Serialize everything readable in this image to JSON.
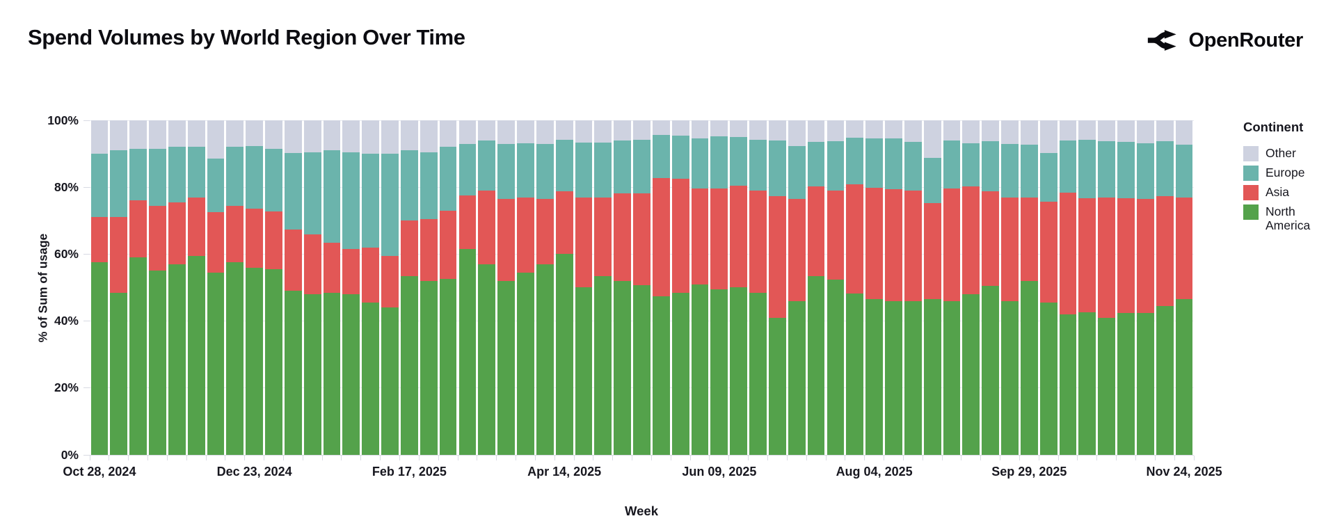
{
  "title": "Spend Volumes by World Region Over Time",
  "brand": {
    "name": "OpenRouter",
    "icon": "fork-arrows-icon",
    "color": "#0a0a0e"
  },
  "chart_data": {
    "type": "bar",
    "stacked": true,
    "unit": "percent",
    "title": "Spend Volumes by World Region Over Time",
    "xlabel": "Week",
    "ylabel": "% of Sum of usage",
    "ylim": [
      0,
      100
    ],
    "grid": true,
    "y_ticks": [
      "0%",
      "20%",
      "40%",
      "60%",
      "80%",
      "100%"
    ],
    "x_tick_labels": [
      {
        "index": 0,
        "label": "Oct 28, 2024"
      },
      {
        "index": 8,
        "label": "Dec 23, 2024"
      },
      {
        "index": 16,
        "label": "Feb 17, 2025"
      },
      {
        "index": 24,
        "label": "Apr 14, 2025"
      },
      {
        "index": 32,
        "label": "Jun 09, 2025"
      },
      {
        "index": 40,
        "label": "Aug 04, 2025"
      },
      {
        "index": 48,
        "label": "Sep 29, 2025"
      },
      {
        "index": 56,
        "label": "Nov 24, 2025"
      }
    ],
    "legend": {
      "title": "Continent",
      "position": "right",
      "entries": [
        {
          "key": "other",
          "label": "Other",
          "color": "#ced2e0"
        },
        {
          "key": "europe",
          "label": "Europe",
          "color": "#6bb4ac"
        },
        {
          "key": "asia",
          "label": "Asia",
          "color": "#e25756"
        },
        {
          "key": "north_america",
          "label": "North America",
          "color": "#54a24b"
        }
      ]
    },
    "series_order_bottom_to_top": [
      "north_america",
      "asia",
      "europe",
      "other"
    ],
    "weeks": [
      {
        "date": "Oct 28, 2024",
        "north_america": 57.5,
        "asia": 13.5,
        "europe": 19.0,
        "other": 10.0
      },
      {
        "date": "Nov 04, 2024",
        "north_america": 48.5,
        "asia": 22.5,
        "europe": 20.0,
        "other": 9.0
      },
      {
        "date": "Nov 11, 2024",
        "north_america": 59.0,
        "asia": 17.0,
        "europe": 15.5,
        "other": 8.5
      },
      {
        "date": "Nov 18, 2024",
        "north_america": 55.0,
        "asia": 19.5,
        "europe": 17.0,
        "other": 8.5
      },
      {
        "date": "Nov 25, 2024",
        "north_america": 57.0,
        "asia": 18.5,
        "europe": 16.5,
        "other": 8.0
      },
      {
        "date": "Dec 02, 2024",
        "north_america": 59.5,
        "asia": 17.5,
        "europe": 15.0,
        "other": 8.0
      },
      {
        "date": "Dec 09, 2024",
        "north_america": 54.5,
        "asia": 18.0,
        "europe": 16.0,
        "other": 11.5
      },
      {
        "date": "Dec 16, 2024",
        "north_america": 57.5,
        "asia": 17.0,
        "europe": 17.5,
        "other": 8.0
      },
      {
        "date": "Dec 23, 2024",
        "north_america": 56.0,
        "asia": 17.5,
        "europe": 18.8,
        "other": 7.7
      },
      {
        "date": "Dec 30, 2024",
        "north_america": 55.5,
        "asia": 17.3,
        "europe": 18.7,
        "other": 8.5
      },
      {
        "date": "Jan 06, 2025",
        "north_america": 49.0,
        "asia": 18.4,
        "europe": 22.9,
        "other": 9.7
      },
      {
        "date": "Jan 13, 2025",
        "north_america": 48.0,
        "asia": 18.0,
        "europe": 24.5,
        "other": 9.5
      },
      {
        "date": "Jan 20, 2025",
        "north_america": 48.5,
        "asia": 15.0,
        "europe": 27.5,
        "other": 9.0
      },
      {
        "date": "Jan 27, 2025",
        "north_america": 48.0,
        "asia": 13.5,
        "europe": 29.0,
        "other": 9.5
      },
      {
        "date": "Feb 03, 2025",
        "north_america": 45.5,
        "asia": 16.5,
        "europe": 28.0,
        "other": 10.0
      },
      {
        "date": "Feb 10, 2025",
        "north_america": 44.0,
        "asia": 15.5,
        "europe": 30.5,
        "other": 10.0
      },
      {
        "date": "Feb 17, 2025",
        "north_america": 53.5,
        "asia": 16.5,
        "europe": 21.0,
        "other": 9.0
      },
      {
        "date": "Feb 24, 2025",
        "north_america": 52.0,
        "asia": 18.5,
        "europe": 20.0,
        "other": 9.5
      },
      {
        "date": "Mar 03, 2025",
        "north_america": 52.5,
        "asia": 20.5,
        "europe": 19.0,
        "other": 8.0
      },
      {
        "date": "Mar 10, 2025",
        "north_america": 61.5,
        "asia": 16.0,
        "europe": 15.5,
        "other": 7.0
      },
      {
        "date": "Mar 17, 2025",
        "north_america": 57.0,
        "asia": 22.0,
        "europe": 15.0,
        "other": 6.0
      },
      {
        "date": "Mar 24, 2025",
        "north_america": 52.0,
        "asia": 24.5,
        "europe": 16.5,
        "other": 7.0
      },
      {
        "date": "Mar 31, 2025",
        "north_america": 54.5,
        "asia": 22.5,
        "europe": 16.2,
        "other": 6.8
      },
      {
        "date": "Apr 07, 2025",
        "north_america": 57.0,
        "asia": 19.6,
        "europe": 16.4,
        "other": 7.0
      },
      {
        "date": "Apr 14, 2025",
        "north_america": 60.0,
        "asia": 18.7,
        "europe": 15.4,
        "other": 5.9
      },
      {
        "date": "Apr 21, 2025",
        "north_america": 50.0,
        "asia": 27.0,
        "europe": 16.3,
        "other": 6.7
      },
      {
        "date": "Apr 28, 2025",
        "north_america": 53.5,
        "asia": 23.5,
        "europe": 16.4,
        "other": 6.6
      },
      {
        "date": "May 05, 2025",
        "north_america": 52.0,
        "asia": 26.2,
        "europe": 15.7,
        "other": 6.1
      },
      {
        "date": "May 12, 2025",
        "north_america": 50.8,
        "asia": 27.4,
        "europe": 15.9,
        "other": 5.9
      },
      {
        "date": "May 19, 2025",
        "north_america": 47.4,
        "asia": 35.3,
        "europe": 13.0,
        "other": 4.3
      },
      {
        "date": "May 26, 2025",
        "north_america": 48.5,
        "asia": 34.0,
        "europe": 13.0,
        "other": 4.5
      },
      {
        "date": "Jun 02, 2025",
        "north_america": 51.0,
        "asia": 28.6,
        "europe": 15.0,
        "other": 5.4
      },
      {
        "date": "Jun 09, 2025",
        "north_america": 49.5,
        "asia": 30.1,
        "europe": 15.7,
        "other": 4.7
      },
      {
        "date": "Jun 16, 2025",
        "north_america": 50.0,
        "asia": 30.5,
        "europe": 14.5,
        "other": 5.0
      },
      {
        "date": "Jun 23, 2025",
        "north_america": 48.5,
        "asia": 30.5,
        "europe": 15.1,
        "other": 5.9
      },
      {
        "date": "Jun 30, 2025",
        "north_america": 41.0,
        "asia": 36.3,
        "europe": 16.6,
        "other": 6.1
      },
      {
        "date": "Jul 07, 2025",
        "north_america": 46.0,
        "asia": 30.6,
        "europe": 15.8,
        "other": 7.6
      },
      {
        "date": "Jul 14, 2025",
        "north_america": 53.5,
        "asia": 26.8,
        "europe": 13.2,
        "other": 6.5
      },
      {
        "date": "Jul 21, 2025",
        "north_america": 52.3,
        "asia": 26.7,
        "europe": 14.7,
        "other": 6.3
      },
      {
        "date": "Jul 28, 2025",
        "north_america": 48.2,
        "asia": 32.6,
        "europe": 14.1,
        "other": 5.1
      },
      {
        "date": "Aug 04, 2025",
        "north_america": 46.5,
        "asia": 33.4,
        "europe": 14.7,
        "other": 5.4
      },
      {
        "date": "Aug 11, 2025",
        "north_america": 46.0,
        "asia": 33.4,
        "europe": 15.1,
        "other": 5.5
      },
      {
        "date": "Aug 18, 2025",
        "north_america": 46.0,
        "asia": 33.0,
        "europe": 14.5,
        "other": 6.5
      },
      {
        "date": "Aug 25, 2025",
        "north_america": 46.5,
        "asia": 28.7,
        "europe": 13.6,
        "other": 11.2
      },
      {
        "date": "Sep 01, 2025",
        "north_america": 46.0,
        "asia": 33.6,
        "europe": 14.3,
        "other": 6.1
      },
      {
        "date": "Sep 08, 2025",
        "north_america": 48.0,
        "asia": 32.3,
        "europe": 12.9,
        "other": 6.8
      },
      {
        "date": "Sep 15, 2025",
        "north_america": 50.5,
        "asia": 28.2,
        "europe": 15.0,
        "other": 6.3
      },
      {
        "date": "Sep 22, 2025",
        "north_america": 46.0,
        "asia": 31.0,
        "europe": 16.0,
        "other": 7.0
      },
      {
        "date": "Sep 29, 2025",
        "north_america": 52.0,
        "asia": 25.0,
        "europe": 15.7,
        "other": 7.3
      },
      {
        "date": "Oct 06, 2025",
        "north_america": 45.5,
        "asia": 30.2,
        "europe": 14.5,
        "other": 9.8
      },
      {
        "date": "Oct 13, 2025",
        "north_america": 42.0,
        "asia": 36.3,
        "europe": 15.6,
        "other": 6.1
      },
      {
        "date": "Oct 20, 2025",
        "north_america": 42.7,
        "asia": 34.1,
        "europe": 17.3,
        "other": 5.9
      },
      {
        "date": "Oct 27, 2025",
        "north_america": 41.0,
        "asia": 36.0,
        "europe": 16.7,
        "other": 6.3
      },
      {
        "date": "Nov 03, 2025",
        "north_america": 42.4,
        "asia": 34.4,
        "europe": 16.7,
        "other": 6.5
      },
      {
        "date": "Nov 10, 2025",
        "north_america": 42.5,
        "asia": 34.1,
        "europe": 16.6,
        "other": 6.8
      },
      {
        "date": "Nov 17, 2025",
        "north_america": 44.5,
        "asia": 32.8,
        "europe": 16.4,
        "other": 6.3
      },
      {
        "date": "Nov 24, 2025",
        "north_america": 46.5,
        "asia": 30.5,
        "europe": 15.7,
        "other": 7.3
      }
    ]
  }
}
